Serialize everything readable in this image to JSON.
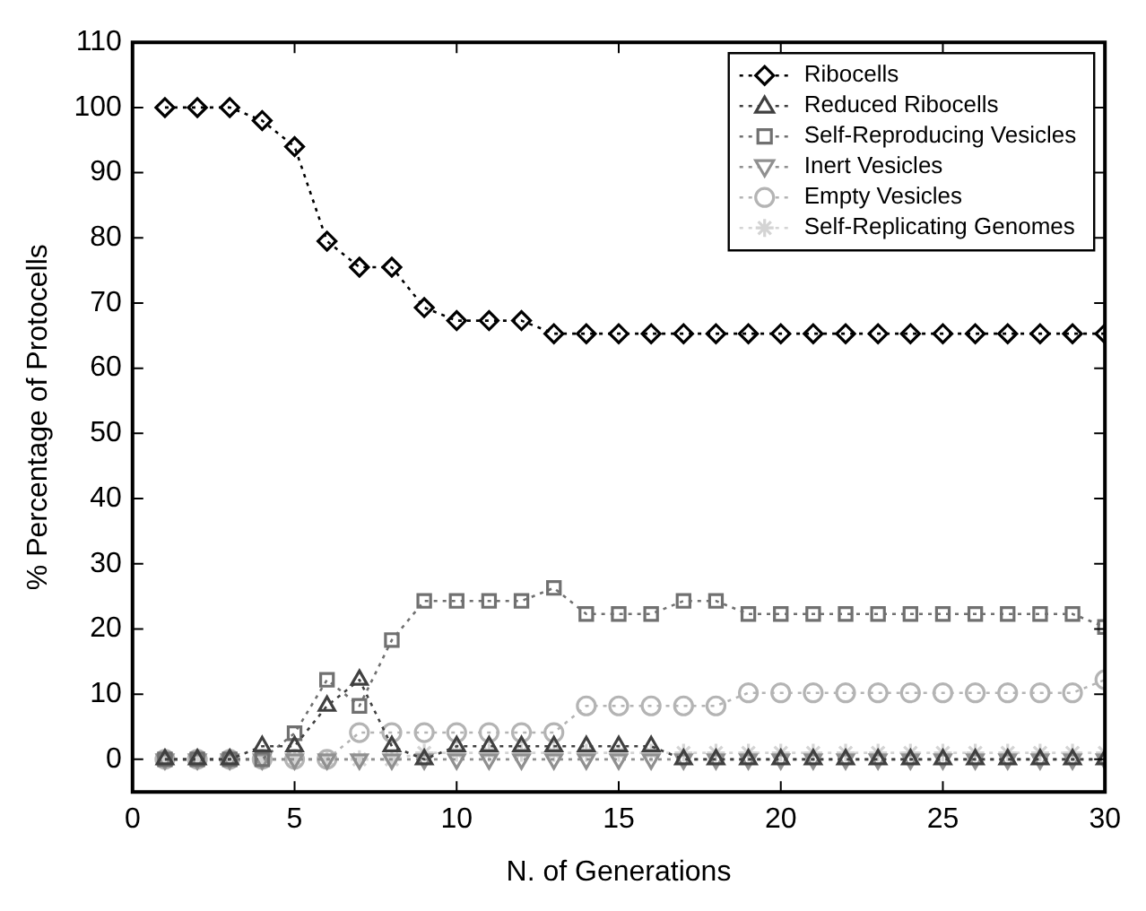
{
  "chart_data": {
    "type": "line",
    "xlabel": "N. of Generations",
    "ylabel": "% Percentage of Protocells",
    "x": [
      1,
      2,
      3,
      4,
      5,
      6,
      7,
      8,
      9,
      10,
      11,
      12,
      13,
      14,
      15,
      16,
      17,
      18,
      19,
      20,
      21,
      22,
      23,
      24,
      25,
      26,
      27,
      28,
      29,
      30
    ],
    "xlim": [
      0,
      30
    ],
    "xticks": [
      0,
      5,
      10,
      15,
      20,
      25,
      30
    ],
    "ylim": [
      -5,
      110
    ],
    "yticks": [
      0,
      10,
      20,
      30,
      40,
      50,
      60,
      70,
      80,
      90,
      100,
      110
    ],
    "grid": false,
    "legend": "top right",
    "line_style": "dotted",
    "series": [
      {
        "name": "Ribocells",
        "color": "#000000",
        "marker": "diamond",
        "values": [
          100,
          100,
          100,
          98,
          94,
          79.5,
          75.5,
          75.5,
          69.3,
          67.3,
          67.3,
          67.3,
          65.3,
          65.3,
          65.3,
          65.3,
          65.3,
          65.3,
          65.3,
          65.3,
          65.3,
          65.3,
          65.3,
          65.3,
          65.3,
          65.3,
          65.3,
          65.3,
          65.3,
          65.3
        ]
      },
      {
        "name": "Reduced Ribocells",
        "color": "#404040",
        "marker": "triangle",
        "values": [
          0,
          0,
          0,
          2,
          2,
          8.2,
          12.2,
          2,
          0,
          2,
          2,
          2,
          2,
          2,
          2,
          2,
          0,
          0,
          0,
          0,
          0,
          0,
          0,
          0,
          0,
          0,
          0,
          0,
          0,
          0
        ]
      },
      {
        "name": "Self-Reproducing Vesicles",
        "color": "#707070",
        "marker": "square",
        "values": [
          0,
          0,
          0,
          0,
          4,
          12.2,
          8.2,
          18.3,
          24.3,
          24.3,
          24.3,
          24.3,
          26.3,
          22.3,
          22.3,
          22.3,
          24.3,
          24.3,
          22.3,
          22.3,
          22.3,
          22.3,
          22.3,
          22.3,
          22.3,
          22.3,
          22.3,
          22.3,
          22.3,
          20.3
        ]
      },
      {
        "name": "Inert Vesicles",
        "color": "#909090",
        "marker": "triangle-down",
        "values": [
          0,
          0,
          0,
          0,
          0,
          0,
          0,
          0,
          0,
          0,
          0,
          0,
          0,
          0,
          0,
          0,
          0,
          0,
          0,
          0,
          0,
          0,
          0,
          0,
          0,
          0,
          0,
          0,
          0,
          0
        ]
      },
      {
        "name": "Empty Vesicles",
        "color": "#b4b4b4",
        "marker": "circle",
        "values": [
          0,
          0,
          0,
          0,
          0,
          0,
          4.1,
          4.1,
          4.1,
          4.1,
          4.1,
          4.1,
          4.1,
          8.2,
          8.2,
          8.2,
          8.2,
          8.2,
          10.2,
          10.2,
          10.2,
          10.2,
          10.2,
          10.2,
          10.2,
          10.2,
          10.2,
          10.2,
          10.2,
          12.2
        ]
      },
      {
        "name": "Self-Replicating Genomes",
        "color": "#d4d4d4",
        "marker": "cross",
        "values": [
          0,
          0,
          0,
          0,
          0,
          0,
          0,
          0,
          1,
          1,
          1,
          1,
          1,
          1,
          1,
          1,
          1,
          1,
          1,
          1,
          1,
          1,
          1,
          1,
          1,
          1,
          1,
          1,
          1,
          1
        ]
      }
    ]
  }
}
